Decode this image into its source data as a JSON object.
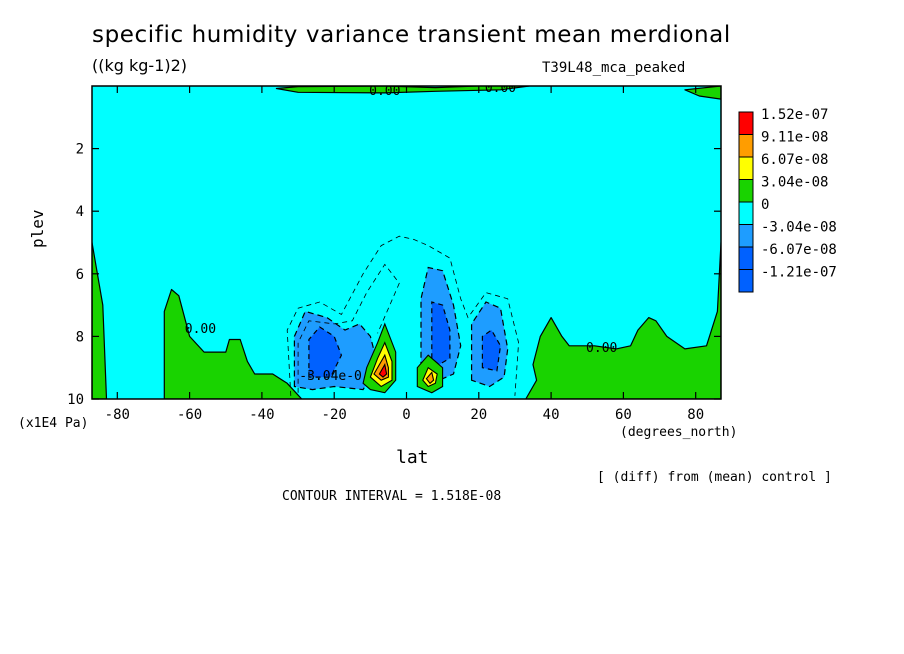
{
  "page": {
    "title": "specific humidity variance transient mean merdional",
    "units": "((kg kg-1)2)",
    "dataset": "T39L48_mca_peaked",
    "x_axis_name": "lat",
    "x_axis_units": "(degrees_north)",
    "y_axis_name": "plev",
    "y_axis_units": "(x1E4 Pa)",
    "note": "[ (diff) from (mean) control ]",
    "contour_interval": "CONTOUR INTERVAL = 1.518E-08"
  },
  "chart_data": {
    "type": "contour",
    "title": "specific humidity variance transient mean merdional",
    "xlabel": "lat",
    "ylabel": "plev",
    "xlim": [
      -87,
      87
    ],
    "ylim": [
      10,
      0
    ],
    "x_ticks": [
      -80,
      -60,
      -40,
      -20,
      0,
      20,
      40,
      60,
      80
    ],
    "y_ticks": [
      2,
      4,
      6,
      8,
      10
    ],
    "contour_interval": 1.518e-08,
    "background_level": "-3.04e-08 to 0",
    "colorbar": [
      {
        "label": "1.52e-07",
        "color": "#ff0000"
      },
      {
        "label": "9.11e-08",
        "color": "#ff9d00"
      },
      {
        "label": "6.07e-08",
        "color": "#ffff00"
      },
      {
        "label": "3.04e-08",
        "color": "#19d300"
      },
      {
        "label": "0",
        "color": "#00ffff"
      },
      {
        "label": "-3.04e-08",
        "color": "#1e9dff"
      },
      {
        "label": "-6.07e-08",
        "color": "#0061ff"
      },
      {
        "label": "-1.21e-07",
        "color": "#0061ff"
      }
    ],
    "contour_labels": [
      {
        "text": "0.00",
        "lat": -6,
        "plev": 0.1
      },
      {
        "text": "0.00",
        "lat": 26,
        "plev": 0.0
      },
      {
        "text": "0.00",
        "lat": -57,
        "plev": 7.7
      },
      {
        "text": "0.00",
        "lat": 54,
        "plev": 8.3
      },
      {
        "text": "-3.04e-0",
        "lat": -21,
        "plev": 9.2
      }
    ],
    "regions": [
      {
        "kind": "positive",
        "level": "0 to 3.04e-08",
        "description": "band near top, lat -36 to -6 and 8 to 24, plev ~0.1"
      },
      {
        "kind": "positive",
        "level": "0 to 3.04e-08",
        "description": "small region lat 23 to 27, plev ~0"
      },
      {
        "kind": "positive",
        "level": "0 to 3.04e-08",
        "description": "top right, lat 78 to 87, plev 0 to 0.4"
      },
      {
        "kind": "positive",
        "level": "0 to 3.04e-08",
        "description": "left edge, lat -87 to -84, plev 5 to 10"
      },
      {
        "kind": "positive",
        "level": "0 to 3.04e-08",
        "description": "lower left, lat -67 to -28, plev 6.5 to 10"
      },
      {
        "kind": "positive",
        "level": "0 to 3.04e-08",
        "description": "lower right, lat 33 to 87, plev 5 to 10"
      },
      {
        "kind": "positive",
        "level": "up to 1.52e-07",
        "description": "peak near lat -7, plev 9.0"
      },
      {
        "kind": "positive",
        "level": "up to 9.11e-08",
        "description": "peak near lat 7, plev 9.3"
      },
      {
        "kind": "negative",
        "level": "down to -1.21e-07",
        "description": "minimum near lat -24, plev 8.5"
      },
      {
        "kind": "negative",
        "level": "down to -1.21e-07",
        "description": "minimum near lat 9, plev 7.8"
      },
      {
        "kind": "negative",
        "level": "down to -6.07e-08",
        "description": "minimum near lat 24, plev 8.5"
      }
    ]
  }
}
